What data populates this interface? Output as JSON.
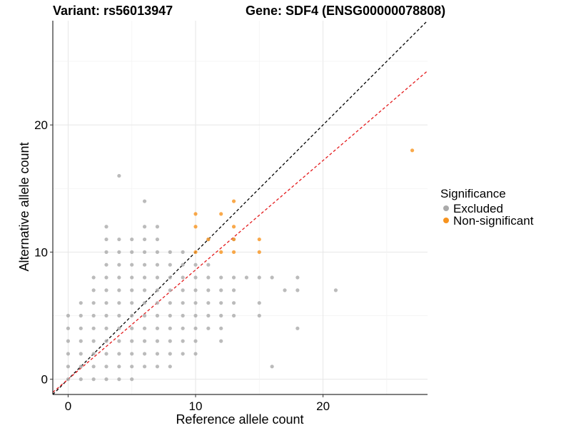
{
  "chart_data": {
    "type": "scatter",
    "title_left": "Variant: rs56013947",
    "title_right": "Gene: SDF4 (ENSG00000078808)",
    "xlabel": "Reference allele count",
    "ylabel": "Alternative allele count",
    "xlim": [
      -1.2,
      28.2
    ],
    "ylim": [
      -1.2,
      28.2
    ],
    "xticks": [
      0,
      10,
      20
    ],
    "yticks": [
      0,
      10,
      20
    ],
    "grid": true,
    "reference_lines": [
      {
        "style": "dashed",
        "color": "#000000",
        "slope": 1.0,
        "intercept": 0
      },
      {
        "style": "dashed",
        "color": "#e41a1c",
        "slope": 0.86,
        "intercept": 0
      }
    ],
    "legend": {
      "title": "Significance",
      "placement": "right",
      "entries": [
        {
          "label": "Excluded",
          "color": "#aaaaaa"
        },
        {
          "label": "Non-significant",
          "color": "#f7931e"
        }
      ]
    },
    "series": [
      {
        "name": "Excluded",
        "color": "#aaaaaa",
        "points": [
          [
            0,
            0
          ],
          [
            0,
            1
          ],
          [
            0,
            2
          ],
          [
            0,
            3
          ],
          [
            0,
            4
          ],
          [
            0,
            5
          ],
          [
            1,
            0
          ],
          [
            1,
            1
          ],
          [
            1,
            2
          ],
          [
            1,
            3
          ],
          [
            1,
            4
          ],
          [
            1,
            5
          ],
          [
            1,
            6
          ],
          [
            2,
            0
          ],
          [
            2,
            1
          ],
          [
            2,
            2
          ],
          [
            2,
            3
          ],
          [
            2,
            4
          ],
          [
            2,
            5
          ],
          [
            2,
            6
          ],
          [
            2,
            7
          ],
          [
            2,
            8
          ],
          [
            3,
            0
          ],
          [
            3,
            1
          ],
          [
            3,
            2
          ],
          [
            3,
            3
          ],
          [
            3,
            4
          ],
          [
            3,
            5
          ],
          [
            3,
            6
          ],
          [
            3,
            7
          ],
          [
            3,
            8
          ],
          [
            3,
            9
          ],
          [
            3,
            10
          ],
          [
            3,
            11
          ],
          [
            3,
            12
          ],
          [
            4,
            0
          ],
          [
            4,
            1
          ],
          [
            4,
            2
          ],
          [
            4,
            3
          ],
          [
            4,
            4
          ],
          [
            4,
            5
          ],
          [
            4,
            6
          ],
          [
            4,
            7
          ],
          [
            4,
            8
          ],
          [
            4,
            9
          ],
          [
            4,
            10
          ],
          [
            4,
            11
          ],
          [
            4,
            16
          ],
          [
            5,
            0
          ],
          [
            5,
            1
          ],
          [
            5,
            2
          ],
          [
            5,
            3
          ],
          [
            5,
            4
          ],
          [
            5,
            5
          ],
          [
            5,
            6
          ],
          [
            5,
            7
          ],
          [
            5,
            8
          ],
          [
            5,
            9
          ],
          [
            5,
            10
          ],
          [
            5,
            11
          ],
          [
            6,
            1
          ],
          [
            6,
            2
          ],
          [
            6,
            3
          ],
          [
            6,
            4
          ],
          [
            6,
            5
          ],
          [
            6,
            6
          ],
          [
            6,
            7
          ],
          [
            6,
            8
          ],
          [
            6,
            9
          ],
          [
            6,
            10
          ],
          [
            6,
            11
          ],
          [
            6,
            12
          ],
          [
            6,
            14
          ],
          [
            7,
            1
          ],
          [
            7,
            2
          ],
          [
            7,
            3
          ],
          [
            7,
            4
          ],
          [
            7,
            5
          ],
          [
            7,
            6
          ],
          [
            7,
            7
          ],
          [
            7,
            8
          ],
          [
            7,
            9
          ],
          [
            7,
            10
          ],
          [
            7,
            11
          ],
          [
            7,
            12
          ],
          [
            8,
            1
          ],
          [
            8,
            2
          ],
          [
            8,
            3
          ],
          [
            8,
            4
          ],
          [
            8,
            5
          ],
          [
            8,
            6
          ],
          [
            8,
            7
          ],
          [
            8,
            8
          ],
          [
            8,
            9
          ],
          [
            8,
            10
          ],
          [
            9,
            2
          ],
          [
            9,
            3
          ],
          [
            9,
            4
          ],
          [
            9,
            5
          ],
          [
            9,
            6
          ],
          [
            9,
            7
          ],
          [
            9,
            8
          ],
          [
            9,
            9
          ],
          [
            9,
            10
          ],
          [
            10,
            2
          ],
          [
            10,
            3
          ],
          [
            10,
            4
          ],
          [
            10,
            5
          ],
          [
            10,
            6
          ],
          [
            10,
            7
          ],
          [
            10,
            8
          ],
          [
            10,
            9
          ],
          [
            11,
            4
          ],
          [
            11,
            5
          ],
          [
            11,
            6
          ],
          [
            11,
            7
          ],
          [
            11,
            8
          ],
          [
            11,
            9
          ],
          [
            11,
            11
          ],
          [
            12,
            3
          ],
          [
            12,
            4
          ],
          [
            12,
            5
          ],
          [
            12,
            6
          ],
          [
            12,
            7
          ],
          [
            12,
            8
          ],
          [
            13,
            5
          ],
          [
            13,
            6
          ],
          [
            13,
            7
          ],
          [
            13,
            8
          ],
          [
            13,
            11
          ],
          [
            14,
            8
          ],
          [
            15,
            5
          ],
          [
            15,
            6
          ],
          [
            15,
            8
          ],
          [
            16,
            1
          ],
          [
            16,
            8
          ],
          [
            17,
            7
          ],
          [
            18,
            4
          ],
          [
            18,
            7
          ],
          [
            18,
            8
          ],
          [
            21,
            7
          ]
        ]
      },
      {
        "name": "Non-significant",
        "color": "#f7931e",
        "points": [
          [
            10,
            10
          ],
          [
            10,
            12
          ],
          [
            10,
            13
          ],
          [
            11,
            11
          ],
          [
            12,
            10
          ],
          [
            12,
            13
          ],
          [
            13,
            10
          ],
          [
            13,
            11
          ],
          [
            13,
            12
          ],
          [
            13,
            14
          ],
          [
            15,
            10
          ],
          [
            15,
            11
          ],
          [
            27,
            18
          ]
        ]
      }
    ]
  }
}
